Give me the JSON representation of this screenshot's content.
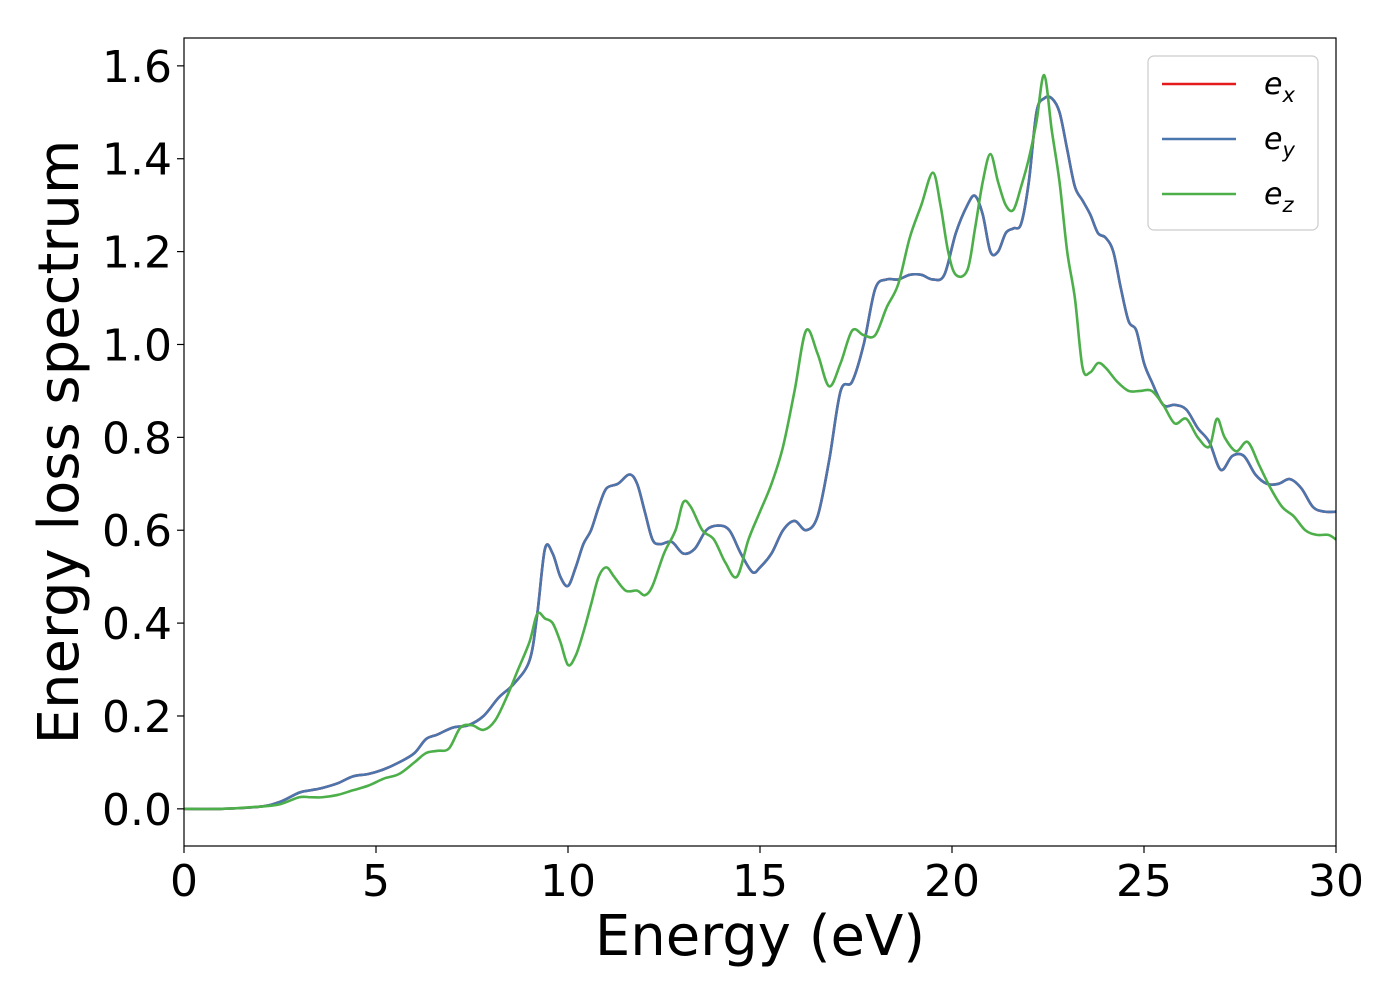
{
  "chart_data": {
    "type": "line",
    "xlabel": "Energy (eV)",
    "ylabel": "Energy loss spectrum",
    "xlim": [
      0,
      30
    ],
    "ylim": [
      -0.08,
      1.66
    ],
    "xticks": [
      0,
      5,
      10,
      15,
      20,
      25,
      30
    ],
    "xtick_labels": [
      "0",
      "5",
      "10",
      "15",
      "20",
      "25",
      "30"
    ],
    "yticks": [
      0.0,
      0.2,
      0.4,
      0.6,
      0.8,
      1.0,
      1.2,
      1.4,
      1.6
    ],
    "ytick_labels": [
      "0.0",
      "0.2",
      "0.4",
      "0.6",
      "0.8",
      "1.0",
      "1.2",
      "1.4",
      "1.6"
    ],
    "grid": false,
    "legend_position": "top-right",
    "series": [
      {
        "name": "e_x",
        "legend_base": "e",
        "legend_sub": "x",
        "color": "#e41a1c",
        "x": [
          0,
          1,
          2,
          2.5,
          3,
          3.3,
          3.6,
          4,
          4.4,
          4.8,
          5.2,
          5.6,
          6,
          6.3,
          6.6,
          7,
          7.4,
          7.8,
          8.2,
          8.6,
          9,
          9.2,
          9.4,
          9.6,
          9.8,
          10,
          10.2,
          10.4,
          10.6,
          10.8,
          11,
          11.3,
          11.6,
          11.8,
          12,
          12.2,
          12.4,
          12.7,
          13,
          13.3,
          13.6,
          13.9,
          14.2,
          14.5,
          14.8,
          15,
          15.3,
          15.6,
          15.9,
          16.2,
          16.5,
          16.8,
          17.1,
          17.4,
          17.7,
          18,
          18.3,
          18.6,
          18.9,
          19.2,
          19.5,
          19.8,
          20.1,
          20.4,
          20.6,
          20.8,
          21,
          21.2,
          21.4,
          21.6,
          21.8,
          22,
          22.2,
          22.4,
          22.6,
          22.8,
          23,
          23.2,
          23.4,
          23.6,
          23.8,
          24,
          24.2,
          24.4,
          24.6,
          24.8,
          25,
          25.2,
          25.5,
          25.8,
          26.1,
          26.4,
          26.7,
          27,
          27.3,
          27.6,
          27.9,
          28.2,
          28.5,
          28.8,
          29.1,
          29.4,
          29.7,
          30
        ],
        "y": [
          0,
          0,
          0.005,
          0.015,
          0.035,
          0.04,
          0.045,
          0.055,
          0.07,
          0.075,
          0.085,
          0.1,
          0.12,
          0.15,
          0.16,
          0.175,
          0.18,
          0.2,
          0.24,
          0.27,
          0.32,
          0.42,
          0.56,
          0.55,
          0.5,
          0.48,
          0.52,
          0.57,
          0.6,
          0.65,
          0.69,
          0.7,
          0.72,
          0.7,
          0.64,
          0.58,
          0.57,
          0.575,
          0.55,
          0.56,
          0.6,
          0.61,
          0.6,
          0.55,
          0.51,
          0.52,
          0.55,
          0.6,
          0.62,
          0.6,
          0.63,
          0.75,
          0.9,
          0.92,
          1.0,
          1.12,
          1.14,
          1.14,
          1.15,
          1.15,
          1.14,
          1.15,
          1.24,
          1.3,
          1.32,
          1.28,
          1.2,
          1.2,
          1.24,
          1.25,
          1.26,
          1.35,
          1.5,
          1.53,
          1.53,
          1.5,
          1.42,
          1.34,
          1.31,
          1.28,
          1.24,
          1.23,
          1.2,
          1.12,
          1.05,
          1.03,
          0.96,
          0.92,
          0.87,
          0.87,
          0.86,
          0.82,
          0.79,
          0.73,
          0.76,
          0.76,
          0.72,
          0.7,
          0.7,
          0.71,
          0.69,
          0.65,
          0.64,
          0.64
        ]
      },
      {
        "name": "e_y",
        "legend_base": "e",
        "legend_sub": "y",
        "color": "#4a76ad",
        "x": [
          0,
          1,
          2,
          2.5,
          3,
          3.3,
          3.6,
          4,
          4.4,
          4.8,
          5.2,
          5.6,
          6,
          6.3,
          6.6,
          7,
          7.4,
          7.8,
          8.2,
          8.6,
          9,
          9.2,
          9.4,
          9.6,
          9.8,
          10,
          10.2,
          10.4,
          10.6,
          10.8,
          11,
          11.3,
          11.6,
          11.8,
          12,
          12.2,
          12.4,
          12.7,
          13,
          13.3,
          13.6,
          13.9,
          14.2,
          14.5,
          14.8,
          15,
          15.3,
          15.6,
          15.9,
          16.2,
          16.5,
          16.8,
          17.1,
          17.4,
          17.7,
          18,
          18.3,
          18.6,
          18.9,
          19.2,
          19.5,
          19.8,
          20.1,
          20.4,
          20.6,
          20.8,
          21,
          21.2,
          21.4,
          21.6,
          21.8,
          22,
          22.2,
          22.4,
          22.6,
          22.8,
          23,
          23.2,
          23.4,
          23.6,
          23.8,
          24,
          24.2,
          24.4,
          24.6,
          24.8,
          25,
          25.2,
          25.5,
          25.8,
          26.1,
          26.4,
          26.7,
          27,
          27.3,
          27.6,
          27.9,
          28.2,
          28.5,
          28.8,
          29.1,
          29.4,
          29.7,
          30
        ],
        "y": [
          0,
          0,
          0.005,
          0.015,
          0.035,
          0.04,
          0.045,
          0.055,
          0.07,
          0.075,
          0.085,
          0.1,
          0.12,
          0.15,
          0.16,
          0.175,
          0.18,
          0.2,
          0.24,
          0.27,
          0.32,
          0.42,
          0.56,
          0.55,
          0.5,
          0.48,
          0.52,
          0.57,
          0.6,
          0.65,
          0.69,
          0.7,
          0.72,
          0.7,
          0.64,
          0.58,
          0.57,
          0.575,
          0.55,
          0.56,
          0.6,
          0.61,
          0.6,
          0.55,
          0.51,
          0.52,
          0.55,
          0.6,
          0.62,
          0.6,
          0.63,
          0.75,
          0.9,
          0.92,
          1.0,
          1.12,
          1.14,
          1.14,
          1.15,
          1.15,
          1.14,
          1.15,
          1.24,
          1.3,
          1.32,
          1.28,
          1.2,
          1.2,
          1.24,
          1.25,
          1.26,
          1.35,
          1.5,
          1.53,
          1.53,
          1.5,
          1.42,
          1.34,
          1.31,
          1.28,
          1.24,
          1.23,
          1.2,
          1.12,
          1.05,
          1.03,
          0.96,
          0.92,
          0.87,
          0.87,
          0.86,
          0.82,
          0.79,
          0.73,
          0.76,
          0.76,
          0.72,
          0.7,
          0.7,
          0.71,
          0.69,
          0.65,
          0.64,
          0.64
        ]
      },
      {
        "name": "e_z",
        "legend_base": "e",
        "legend_sub": "z",
        "color": "#4daf4a",
        "x": [
          0,
          1,
          2,
          2.5,
          3,
          3.3,
          3.6,
          4,
          4.4,
          4.8,
          5.2,
          5.6,
          6,
          6.3,
          6.6,
          6.9,
          7.2,
          7.5,
          7.8,
          8.1,
          8.4,
          8.7,
          9,
          9.2,
          9.4,
          9.6,
          9.8,
          10,
          10.2,
          10.4,
          10.6,
          10.8,
          11,
          11.2,
          11.5,
          11.8,
          12,
          12.2,
          12.5,
          12.8,
          13,
          13.2,
          13.5,
          13.8,
          14.1,
          14.4,
          14.7,
          15,
          15.3,
          15.6,
          15.9,
          16.2,
          16.5,
          16.8,
          17.1,
          17.4,
          17.7,
          18,
          18.3,
          18.6,
          18.9,
          19.2,
          19.5,
          19.7,
          19.9,
          20.1,
          20.4,
          20.6,
          20.8,
          21,
          21.2,
          21.4,
          21.6,
          21.8,
          22,
          22.2,
          22.4,
          22.6,
          22.8,
          23,
          23.2,
          23.4,
          23.6,
          23.8,
          24,
          24.3,
          24.6,
          24.9,
          25.2,
          25.5,
          25.8,
          26.1,
          26.4,
          26.7,
          26.9,
          27.1,
          27.4,
          27.7,
          28,
          28.3,
          28.6,
          28.9,
          29.2,
          29.5,
          29.8,
          30
        ],
        "y": [
          0,
          0,
          0.005,
          0.01,
          0.025,
          0.025,
          0.025,
          0.03,
          0.04,
          0.05,
          0.065,
          0.075,
          0.1,
          0.12,
          0.125,
          0.13,
          0.175,
          0.18,
          0.17,
          0.19,
          0.24,
          0.3,
          0.36,
          0.42,
          0.41,
          0.4,
          0.36,
          0.31,
          0.33,
          0.38,
          0.44,
          0.5,
          0.52,
          0.5,
          0.47,
          0.47,
          0.46,
          0.48,
          0.55,
          0.6,
          0.66,
          0.65,
          0.6,
          0.58,
          0.53,
          0.5,
          0.58,
          0.64,
          0.7,
          0.78,
          0.9,
          1.03,
          0.98,
          0.91,
          0.96,
          1.03,
          1.02,
          1.02,
          1.08,
          1.13,
          1.23,
          1.3,
          1.37,
          1.3,
          1.2,
          1.15,
          1.16,
          1.25,
          1.35,
          1.41,
          1.35,
          1.3,
          1.29,
          1.34,
          1.4,
          1.48,
          1.58,
          1.46,
          1.35,
          1.2,
          1.1,
          0.95,
          0.94,
          0.96,
          0.95,
          0.92,
          0.9,
          0.9,
          0.9,
          0.87,
          0.83,
          0.84,
          0.8,
          0.78,
          0.84,
          0.8,
          0.77,
          0.79,
          0.74,
          0.69,
          0.65,
          0.63,
          0.6,
          0.59,
          0.59,
          0.58
        ]
      }
    ]
  }
}
